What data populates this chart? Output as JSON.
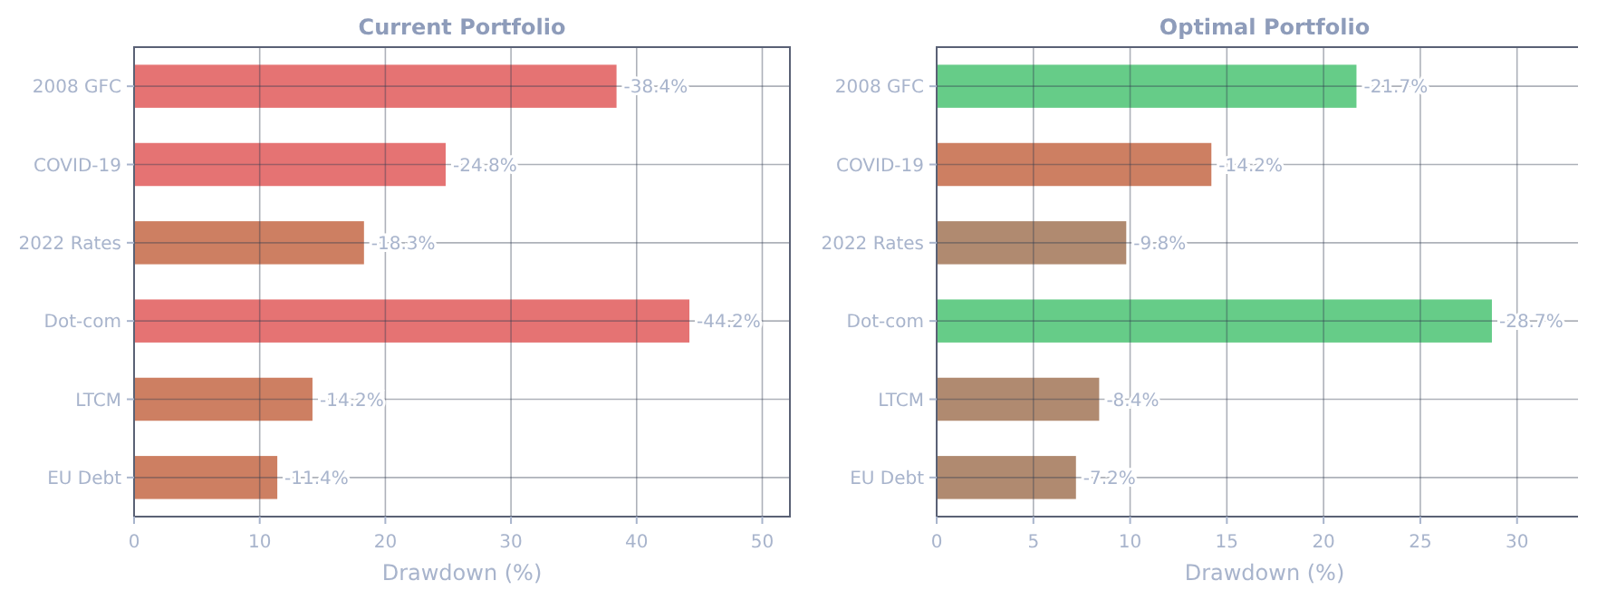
{
  "chart_data": [
    {
      "type": "bar",
      "orientation": "horizontal",
      "title": "Current Portfolio",
      "xlabel": "Drawdown (%)",
      "categories": [
        "2008 GFC",
        "COVID-19",
        "2022 Rates",
        "Dot-com",
        "LTCM",
        "EU Debt"
      ],
      "values": [
        -38.4,
        -24.8,
        -18.3,
        -44.2,
        -14.2,
        -11.4
      ],
      "colors": [
        "#e57373",
        "#e57373",
        "#cd7f62",
        "#e57373",
        "#cd7f62",
        "#cd7f62"
      ],
      "value_labels": [
        "-38.4%",
        "-24.8%",
        "-18.3%",
        "-44.2%",
        "-14.2%",
        "-11.4%"
      ],
      "xlim": [
        0,
        -52.2
      ],
      "xticks": [
        0,
        {
          "value": -10,
          "label": "10"
        },
        {
          "value": -20,
          "label": "20"
        },
        {
          "value": -30,
          "label": "30"
        },
        {
          "value": -40,
          "label": "40"
        },
        {
          "value": -50,
          "label": "50"
        }
      ],
      "grid": true
    },
    {
      "type": "bar",
      "orientation": "horizontal",
      "title": "Optimal Portfolio",
      "xlabel": "Drawdown (%)",
      "categories": [
        "2008 GFC",
        "COVID-19",
        "2022 Rates",
        "Dot-com",
        "LTCM",
        "EU Debt"
      ],
      "values": [
        -21.7,
        -14.2,
        -9.8,
        -28.7,
        -8.4,
        -7.2
      ],
      "colors": [
        "#66cc88",
        "#cd7f62",
        "#b08a70",
        "#66cc88",
        "#b08a70",
        "#b08a70"
      ],
      "value_labels": [
        "-21.7%",
        "-14.2%",
        "-9.8%",
        "-28.7%",
        "-8.4%",
        "-7.2%"
      ],
      "xlim": [
        0,
        -33.9
      ],
      "xticks": [
        0,
        {
          "value": -5,
          "label": "5"
        },
        {
          "value": -10,
          "label": "10"
        },
        {
          "value": -15,
          "label": "15"
        },
        {
          "value": -20,
          "label": "20"
        },
        {
          "value": -25,
          "label": "25"
        },
        {
          "value": -30,
          "label": "30"
        }
      ],
      "grid": true
    }
  ]
}
